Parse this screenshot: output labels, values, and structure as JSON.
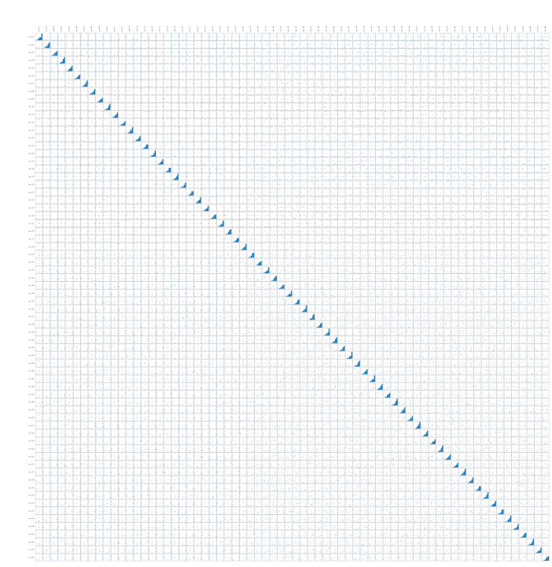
{
  "figure": {
    "accent_color": "#1f77b4",
    "cell_border_color": "#8f8f8f",
    "background": "#ffffff"
  },
  "chart_data": {
    "type": "scatter",
    "subtype": "pair-plot-matrix",
    "title": "",
    "n_variables": 68,
    "variables": [
      "var_01",
      "var_02",
      "var_03",
      "var_04",
      "var_05",
      "var_06",
      "var_07",
      "var_08",
      "var_09",
      "var_10",
      "var_11",
      "var_12",
      "var_13",
      "var_14",
      "var_15",
      "var_16",
      "var_17",
      "var_18",
      "var_19",
      "var_20",
      "var_21",
      "var_22",
      "var_23",
      "var_24",
      "var_25",
      "var_26",
      "var_27",
      "var_28",
      "var_29",
      "var_30",
      "var_31",
      "var_32",
      "var_33",
      "var_34",
      "var_35",
      "var_36",
      "var_37",
      "var_38",
      "var_39",
      "var_40",
      "var_41",
      "var_42",
      "var_43",
      "var_44",
      "var_45",
      "var_46",
      "var_47",
      "var_48",
      "var_49",
      "var_50",
      "var_51",
      "var_52",
      "var_53",
      "var_54",
      "var_55",
      "var_56",
      "var_57",
      "var_58",
      "var_59",
      "var_60",
      "var_61",
      "var_62",
      "var_63",
      "var_64",
      "var_65",
      "var_66",
      "var_67",
      "var_68"
    ],
    "diagonal": "histogram",
    "off_diagonal": "scatter",
    "legend": "none",
    "grid": false
  }
}
